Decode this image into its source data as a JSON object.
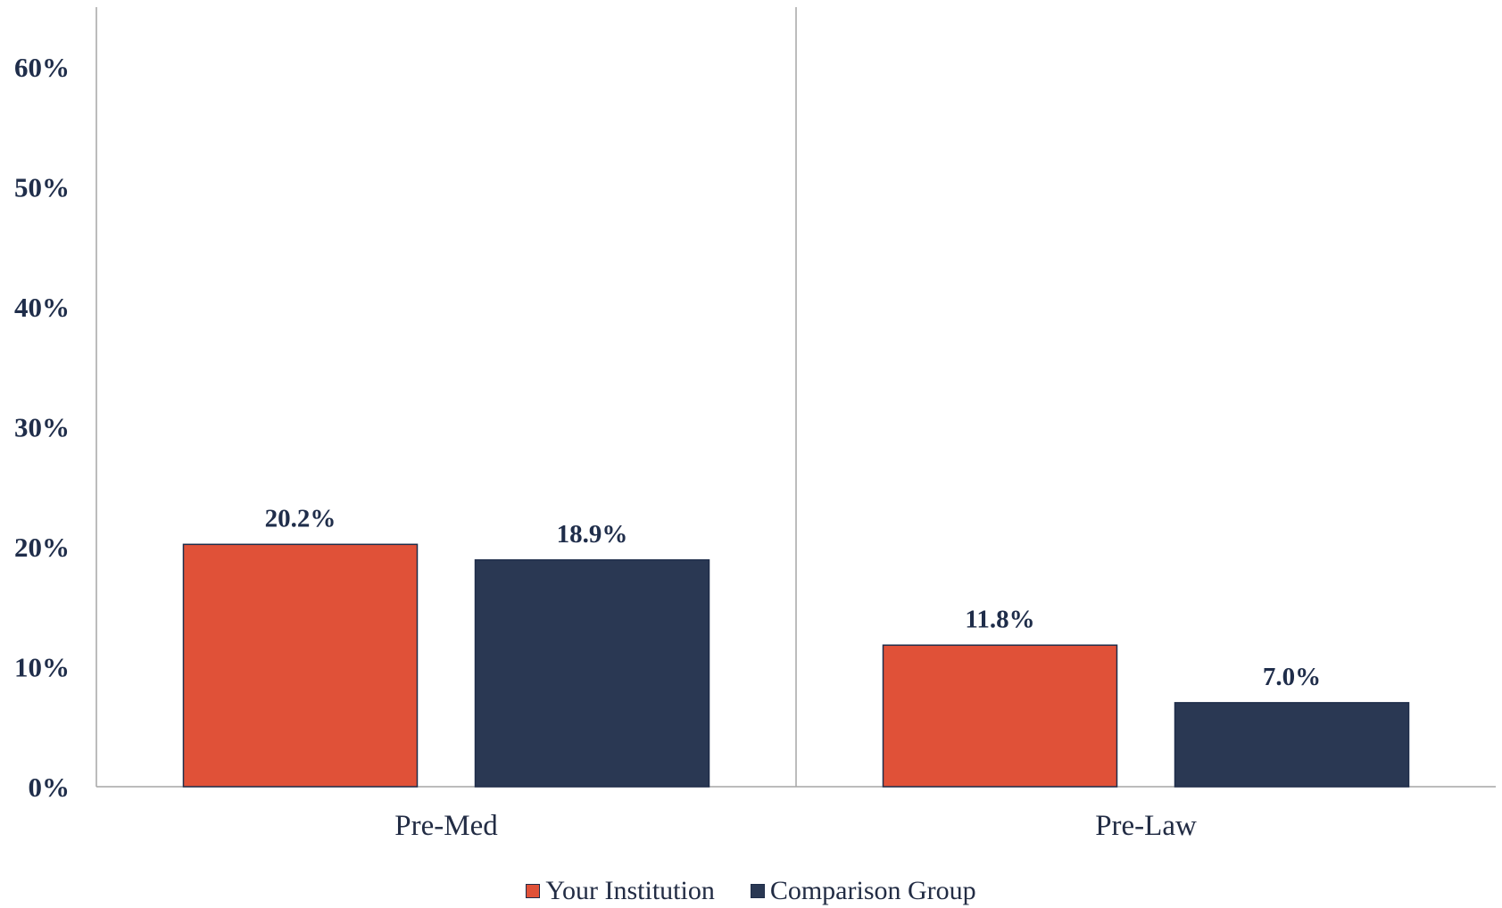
{
  "chart_data": {
    "type": "bar",
    "categories": [
      "Pre-Med",
      "Pre-Law"
    ],
    "series": [
      {
        "name": "Your Institution",
        "values": [
          20.2,
          11.8
        ],
        "labels": [
          "20.2%",
          "11.8%"
        ],
        "color": "#e05138"
      },
      {
        "name": "Comparison Group",
        "values": [
          18.9,
          7.0
        ],
        "labels": [
          "18.9%",
          "7.0%"
        ],
        "color": "#2a3853"
      }
    ],
    "ylim": [
      0,
      65
    ],
    "yticks": [
      0,
      10,
      20,
      30,
      40,
      50,
      60
    ],
    "ytick_labels": [
      "0%",
      "10%",
      "20%",
      "30%",
      "40%",
      "50%",
      "60%"
    ],
    "legend_position": "bottom-center",
    "grid": false,
    "title": "",
    "xlabel": "",
    "ylabel": ""
  }
}
